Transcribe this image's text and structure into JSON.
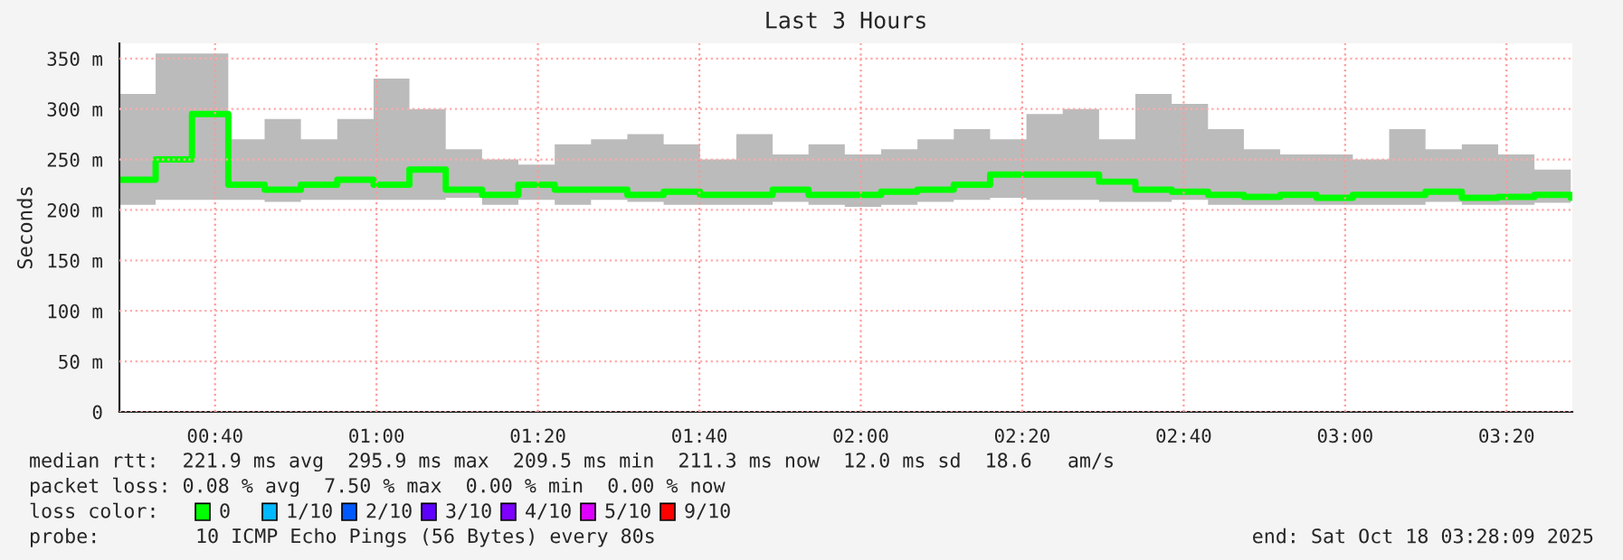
{
  "chart_data": {
    "type": "step",
    "title": "Last 3 Hours",
    "ylabel": "Seconds",
    "x": [
      0.47,
      0.544,
      0.619,
      0.694,
      0.769,
      0.844,
      0.919,
      0.994,
      1.068,
      1.143,
      1.218,
      1.293,
      1.368,
      1.443,
      1.518,
      1.593,
      1.668,
      1.743,
      1.818,
      1.892,
      1.967,
      2.042,
      2.117,
      2.192,
      2.267,
      2.342,
      2.417,
      2.492,
      2.567,
      2.642,
      2.717,
      2.791,
      2.866,
      2.941,
      3.016,
      3.091,
      3.166,
      3.241,
      3.316,
      3.391,
      3.466
    ],
    "series": [
      {
        "color": "#00ff00",
        "values": [
          230,
          250,
          295,
          225,
          220,
          225,
          230,
          225,
          240,
          220,
          215,
          225,
          220,
          220,
          215,
          218,
          215,
          215,
          220,
          215,
          215,
          218,
          220,
          225,
          235,
          235,
          235,
          228,
          220,
          218,
          215,
          213,
          215,
          212,
          215,
          215,
          218,
          212,
          213,
          215,
          212
        ],
        "lower": [
          205,
          210,
          210,
          210,
          208,
          210,
          210,
          210,
          210,
          212,
          205,
          210,
          205,
          210,
          208,
          205,
          205,
          205,
          208,
          205,
          203,
          205,
          208,
          210,
          212,
          210,
          210,
          208,
          208,
          210,
          205,
          205,
          205,
          205,
          205,
          205,
          208,
          205,
          205,
          207,
          206
        ],
        "upper": [
          315,
          355,
          355,
          270,
          290,
          270,
          290,
          330,
          300,
          260,
          250,
          245,
          265,
          270,
          275,
          265,
          250,
          275,
          255,
          265,
          255,
          260,
          270,
          280,
          270,
          295,
          300,
          270,
          315,
          305,
          280,
          260,
          255,
          255,
          250,
          280,
          260,
          265,
          255,
          240,
          230
        ]
      }
    ],
    "xlim": [
      0.4692,
      3.4692
    ],
    "xticks": [
      {
        "value": 0.6667,
        "label": "00:40"
      },
      {
        "value": 1.0,
        "label": "01:00"
      },
      {
        "value": 1.3333,
        "label": "01:20"
      },
      {
        "value": 1.6667,
        "label": "01:40"
      },
      {
        "value": 2.0,
        "label": "02:00"
      },
      {
        "value": 2.3333,
        "label": "02:20"
      },
      {
        "value": 2.6667,
        "label": "02:40"
      },
      {
        "value": 3.0,
        "label": "03:00"
      },
      {
        "value": 3.3333,
        "label": "03:20"
      }
    ],
    "ylim": [
      0,
      365
    ],
    "yticks": [
      0,
      {
        "value": 50,
        "label": "50 m"
      },
      {
        "value": 100,
        "label": "100 m"
      },
      {
        "value": 150,
        "label": "150 m"
      },
      {
        "value": 200,
        "label": "200 m"
      },
      {
        "value": 250,
        "label": "250 m"
      },
      {
        "value": 300,
        "label": "300 m"
      },
      {
        "value": 350,
        "label": "350 m"
      }
    ],
    "grid": true,
    "annotations": [
      "median rtt:  221.9 ms avg  295.9 ms max  209.5 ms min  211.3 ms now  12.0 ms sd  18.6   am/s",
      "packet loss: 0.08 % avg  7.50 % max  0.00 % min  0.00 % now",
      "loss color:",
      "0",
      "1/10",
      "2/10",
      "3/10",
      "4/10",
      "5/10",
      "9/10",
      "probe:",
      "10 ICMP Echo Pings (56 Bytes) every 80s",
      "end: Sat Oct 18 03:28:09 2025"
    ]
  }
}
